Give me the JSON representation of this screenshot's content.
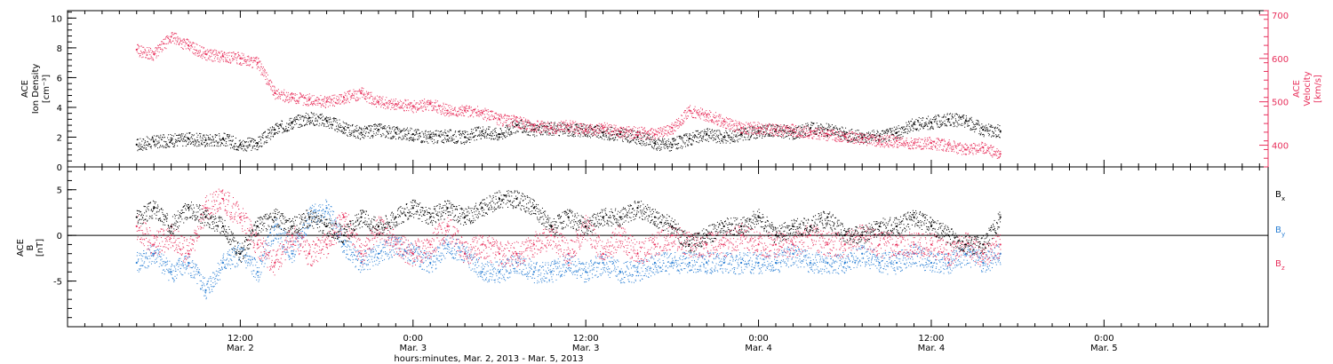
{
  "chart_data": [
    {
      "type": "scatter",
      "panel": "top",
      "ylabel_left": [
        "ACE",
        "Ion Density",
        "[cm⁻³]"
      ],
      "ylabel_right": [
        "ACE",
        "Velocity",
        "[km/s]"
      ],
      "ylim_left": [
        0,
        10.5
      ],
      "yticks_left": [
        "0",
        "2",
        "4",
        "6",
        "8",
        "10"
      ],
      "ylim_right": [
        350,
        710
      ],
      "yticks_right": [
        "400",
        "500",
        "600",
        "700"
      ],
      "series": [
        {
          "axis": "left",
          "color": "#000000",
          "x": [
            0,
            6,
            12,
            18,
            24,
            30,
            36,
            42,
            48,
            54,
            60,
            66,
            72,
            78,
            84,
            90,
            96,
            102,
            108,
            114,
            120,
            126,
            132,
            138,
            144,
            150,
            156,
            162,
            168,
            174,
            180,
            186,
            192,
            198,
            204,
            210,
            216,
            222,
            228,
            234,
            240,
            246,
            252,
            258,
            264,
            270,
            276,
            282,
            288,
            294,
            300
          ],
          "values": [
            1.5,
            1.7,
            1.8,
            1.9,
            1.8,
            1.9,
            1.5,
            1.6,
            2.5,
            3.0,
            3.3,
            3.1,
            2.6,
            2.3,
            2.5,
            2.3,
            2.2,
            2.0,
            2.1,
            2.0,
            2.4,
            2.2,
            2.8,
            2.5,
            2.6,
            2.5,
            2.5,
            2.3,
            2.2,
            2.0,
            1.6,
            1.5,
            1.9,
            2.2,
            2.0,
            2.2,
            2.4,
            2.5,
            2.3,
            2.6,
            2.5,
            2.2,
            2.0,
            2.1,
            2.3,
            2.9,
            3.0,
            3.2,
            3.1,
            2.5,
            2.4
          ]
        },
        {
          "axis": "right",
          "color": "#e8305c",
          "x": [
            0,
            6,
            12,
            18,
            24,
            30,
            36,
            42,
            48,
            54,
            60,
            66,
            72,
            78,
            84,
            90,
            96,
            102,
            108,
            114,
            120,
            126,
            132,
            138,
            144,
            150,
            156,
            162,
            168,
            174,
            180,
            186,
            192,
            198,
            204,
            210,
            216,
            222,
            228,
            234,
            240,
            246,
            252,
            258,
            264,
            270,
            276,
            282,
            288,
            294,
            300
          ],
          "values": [
            620,
            610,
            650,
            630,
            610,
            605,
            600,
            590,
            520,
            510,
            505,
            500,
            510,
            520,
            500,
            495,
            490,
            495,
            480,
            480,
            475,
            460,
            455,
            445,
            440,
            445,
            435,
            440,
            430,
            430,
            425,
            440,
            480,
            470,
            455,
            440,
            440,
            435,
            435,
            430,
            425,
            420,
            415,
            410,
            410,
            405,
            405,
            400,
            390,
            395,
            380
          ]
        }
      ]
    },
    {
      "type": "scatter",
      "panel": "bottom",
      "ylabel_left": [
        "ACE",
        "B",
        "[nT]"
      ],
      "ylim_left": [
        -10,
        7.5
      ],
      "yticks_left": [
        "-5",
        "0",
        "5"
      ],
      "zero_line": true,
      "series": [
        {
          "name": "Bx",
          "color": "#000000",
          "x": [
            0,
            6,
            12,
            18,
            24,
            30,
            36,
            42,
            48,
            54,
            60,
            66,
            72,
            78,
            84,
            90,
            96,
            102,
            108,
            114,
            120,
            126,
            132,
            138,
            144,
            150,
            156,
            162,
            168,
            174,
            180,
            186,
            192,
            198,
            204,
            210,
            216,
            222,
            228,
            234,
            240,
            246,
            252,
            258,
            264,
            270,
            276,
            282,
            288,
            294,
            300
          ],
          "values": [
            2,
            3,
            1,
            3,
            2,
            1,
            -2,
            1,
            2,
            1,
            2,
            1,
            0,
            2,
            1,
            2,
            3,
            2,
            3,
            2,
            3,
            4,
            4,
            3,
            1,
            2,
            1,
            2,
            2,
            3,
            2,
            1,
            -1,
            0,
            1,
            1,
            2,
            0,
            1,
            1,
            2,
            0,
            0,
            1,
            1,
            2,
            1,
            0,
            -1,
            -1,
            2
          ]
        },
        {
          "name": "By",
          "color": "#2a7fd4",
          "x": [
            0,
            6,
            12,
            18,
            24,
            30,
            36,
            42,
            48,
            54,
            60,
            66,
            72,
            78,
            84,
            90,
            96,
            102,
            108,
            114,
            120,
            126,
            132,
            138,
            144,
            150,
            156,
            162,
            168,
            174,
            180,
            186,
            192,
            198,
            204,
            210,
            216,
            222,
            228,
            234,
            240,
            246,
            252,
            258,
            264,
            270,
            276,
            282,
            288,
            294,
            300
          ],
          "values": [
            -3,
            -2,
            -4,
            -3,
            -6,
            -3,
            -2,
            -4,
            1,
            -2,
            2,
            3,
            -1,
            -3,
            -2,
            -1,
            -2,
            -3,
            -1,
            -2,
            -4,
            -4,
            -3,
            -4,
            -4,
            -3,
            -4,
            -3,
            -4,
            -4,
            -3,
            -3,
            -3,
            -3,
            -3,
            -3,
            -3,
            -3,
            -2,
            -3,
            -3,
            -3,
            -2,
            -3,
            -3,
            -2,
            -3,
            -3,
            -2,
            -3,
            -2
          ]
        },
        {
          "name": "Bz",
          "color": "#e8305c",
          "x": [
            0,
            6,
            12,
            18,
            24,
            30,
            36,
            42,
            48,
            54,
            60,
            66,
            72,
            78,
            84,
            90,
            96,
            102,
            108,
            114,
            120,
            126,
            132,
            138,
            144,
            150,
            156,
            162,
            168,
            174,
            180,
            186,
            192,
            198,
            204,
            210,
            216,
            222,
            228,
            234,
            240,
            246,
            252,
            258,
            264,
            270,
            276,
            282,
            288,
            294,
            300
          ],
          "values": [
            1,
            -1,
            0,
            -2,
            3,
            4,
            2,
            -1,
            -3,
            0,
            -2,
            -1,
            2,
            -2,
            1,
            -1,
            -2,
            -1,
            1,
            -2,
            -1,
            -2,
            -2,
            -1,
            0,
            -2,
            1,
            -2,
            0,
            -2,
            -1,
            0,
            -1,
            -1,
            -1,
            0,
            -1,
            -1,
            -1,
            0,
            -1,
            -1,
            0,
            -1,
            -1,
            -1,
            -1,
            -2,
            -1,
            -2,
            -1
          ]
        }
      ],
      "legend": [
        {
          "label": "B",
          "sub": "x",
          "color": "#000000"
        },
        {
          "label": "B",
          "sub": "y",
          "color": "#2a7fd4"
        },
        {
          "label": "B",
          "sub": "z",
          "color": "#e8305c"
        }
      ]
    }
  ],
  "x_axis": {
    "xlim": [
      -24,
      393
    ],
    "ticks": [
      {
        "x": 36,
        "top": "12:00",
        "bottom": "Mar. 2"
      },
      {
        "x": 96,
        "top": "0:00",
        "bottom": "Mar. 3"
      },
      {
        "x": 156,
        "top": "12:00",
        "bottom": "Mar. 3"
      },
      {
        "x": 216,
        "top": "0:00",
        "bottom": "Mar. 4"
      },
      {
        "x": 276,
        "top": "12:00",
        "bottom": "Mar. 4"
      },
      {
        "x": 336,
        "top": "0:00",
        "bottom": "Mar. 5"
      }
    ],
    "xlabel": "hours:minutes, Mar.  2, 2013 - Mar.  5, 2013"
  }
}
